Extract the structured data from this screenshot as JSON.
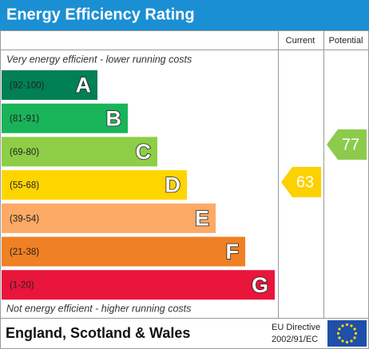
{
  "header": {
    "title": "Energy Efficiency Rating",
    "columns": [
      "Current",
      "Potential"
    ]
  },
  "top_note": "Very energy efficient - lower running costs",
  "bands": [
    {
      "range": "(92-100)",
      "letter": "A"
    },
    {
      "range": "(81-91)",
      "letter": "B"
    },
    {
      "range": "(69-80)",
      "letter": "C"
    },
    {
      "range": "(55-68)",
      "letter": "D"
    },
    {
      "range": "(39-54)",
      "letter": "E"
    },
    {
      "range": "(21-38)",
      "letter": "F"
    },
    {
      "range": "(1-20)",
      "letter": "G"
    }
  ],
  "bottom_note": "Not energy efficient - higher running costs",
  "current": 63,
  "potential": 77,
  "footer": {
    "region": "England, Scotland & Wales",
    "directive": [
      "EU Directive",
      "2002/91/EC"
    ]
  }
}
